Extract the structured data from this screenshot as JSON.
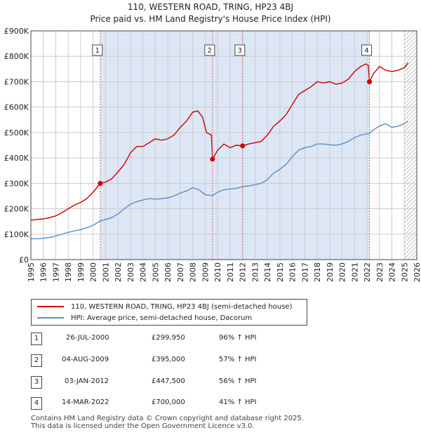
{
  "title_line1": "110, WESTERN ROAD, TRING, HP23 4BJ",
  "title_line2": "Price paid vs. HM Land Registry's House Price Index (HPI)",
  "colors": {
    "property": "#cc0000",
    "hpi": "#5b8ec9",
    "shade": "#dde6f5",
    "grid": "#cccccc",
    "marker_line": "#e06060"
  },
  "chart_data": {
    "type": "line",
    "xlim": [
      1995,
      2026
    ],
    "ylim": [
      0,
      900000
    ],
    "y_ticks": [
      {
        "value": 0,
        "label": "£0"
      },
      {
        "value": 100000,
        "label": "£100K"
      },
      {
        "value": 200000,
        "label": "£200K"
      },
      {
        "value": 300000,
        "label": "£300K"
      },
      {
        "value": 400000,
        "label": "£400K"
      },
      {
        "value": 500000,
        "label": "£500K"
      },
      {
        "value": 600000,
        "label": "£600K"
      },
      {
        "value": 700000,
        "label": "£700K"
      },
      {
        "value": 800000,
        "label": "£800K"
      },
      {
        "value": 900000,
        "label": "£900K"
      }
    ],
    "x_ticks": [
      "1995",
      "1996",
      "1997",
      "1998",
      "1999",
      "2000",
      "2001",
      "2002",
      "2003",
      "2004",
      "2005",
      "2006",
      "2007",
      "2008",
      "2009",
      "2010",
      "2011",
      "2012",
      "2013",
      "2014",
      "2015",
      "2016",
      "2017",
      "2018",
      "2019",
      "2020",
      "2021",
      "2022",
      "2023",
      "2024",
      "2025",
      "2026"
    ],
    "shaded_range": [
      2000.57,
      2022.2
    ],
    "hatched_from": 2025.0,
    "series": [
      {
        "name": "110, WESTERN ROAD, TRING, HP23 4BJ (semi-detached house)",
        "color": "#cc0000",
        "points": [
          [
            1995.0,
            155000
          ],
          [
            1995.5,
            158000
          ],
          [
            1996.0,
            160000
          ],
          [
            1996.5,
            165000
          ],
          [
            1997.0,
            172000
          ],
          [
            1997.5,
            185000
          ],
          [
            1998.0,
            200000
          ],
          [
            1998.5,
            215000
          ],
          [
            1999.0,
            225000
          ],
          [
            1999.5,
            240000
          ],
          [
            2000.0,
            265000
          ],
          [
            2000.57,
            299950
          ],
          [
            2001.0,
            305000
          ],
          [
            2001.5,
            318000
          ],
          [
            2002.0,
            345000
          ],
          [
            2002.5,
            375000
          ],
          [
            2003.0,
            420000
          ],
          [
            2003.5,
            445000
          ],
          [
            2004.0,
            445000
          ],
          [
            2004.5,
            460000
          ],
          [
            2005.0,
            475000
          ],
          [
            2005.5,
            470000
          ],
          [
            2006.0,
            475000
          ],
          [
            2006.5,
            490000
          ],
          [
            2007.0,
            520000
          ],
          [
            2007.5,
            545000
          ],
          [
            2008.0,
            580000
          ],
          [
            2008.4,
            585000
          ],
          [
            2008.8,
            560000
          ],
          [
            2009.1,
            500000
          ],
          [
            2009.5,
            490000
          ],
          [
            2009.59,
            395000
          ],
          [
            2010.0,
            430000
          ],
          [
            2010.5,
            455000
          ],
          [
            2011.0,
            440000
          ],
          [
            2011.5,
            450000
          ],
          [
            2012.01,
            447500
          ],
          [
            2012.5,
            455000
          ],
          [
            2013.0,
            460000
          ],
          [
            2013.5,
            465000
          ],
          [
            2014.0,
            490000
          ],
          [
            2014.5,
            525000
          ],
          [
            2015.0,
            545000
          ],
          [
            2015.5,
            570000
          ],
          [
            2016.0,
            610000
          ],
          [
            2016.5,
            650000
          ],
          [
            2017.0,
            665000
          ],
          [
            2017.5,
            680000
          ],
          [
            2018.0,
            700000
          ],
          [
            2018.5,
            695000
          ],
          [
            2019.0,
            700000
          ],
          [
            2019.5,
            690000
          ],
          [
            2020.0,
            695000
          ],
          [
            2020.5,
            710000
          ],
          [
            2021.0,
            740000
          ],
          [
            2021.5,
            760000
          ],
          [
            2021.9,
            770000
          ],
          [
            2022.1,
            765000
          ],
          [
            2022.2,
            700000
          ],
          [
            2022.5,
            730000
          ],
          [
            2023.0,
            760000
          ],
          [
            2023.5,
            745000
          ],
          [
            2024.0,
            740000
          ],
          [
            2024.5,
            745000
          ],
          [
            2025.0,
            755000
          ],
          [
            2025.3,
            775000
          ]
        ]
      },
      {
        "name": "HPI: Average price, semi-detached house, Dacorum",
        "color": "#5b8ec9",
        "points": [
          [
            1995.0,
            82000
          ],
          [
            1995.5,
            82000
          ],
          [
            1996.0,
            84000
          ],
          [
            1996.5,
            87000
          ],
          [
            1997.0,
            93000
          ],
          [
            1997.5,
            100000
          ],
          [
            1998.0,
            107000
          ],
          [
            1998.5,
            113000
          ],
          [
            1999.0,
            118000
          ],
          [
            1999.5,
            125000
          ],
          [
            2000.0,
            135000
          ],
          [
            2000.57,
            152000
          ],
          [
            2001.0,
            158000
          ],
          [
            2001.5,
            165000
          ],
          [
            2002.0,
            180000
          ],
          [
            2002.5,
            200000
          ],
          [
            2003.0,
            218000
          ],
          [
            2003.5,
            228000
          ],
          [
            2004.0,
            235000
          ],
          [
            2004.5,
            240000
          ],
          [
            2005.0,
            238000
          ],
          [
            2005.5,
            240000
          ],
          [
            2006.0,
            243000
          ],
          [
            2006.5,
            250000
          ],
          [
            2007.0,
            262000
          ],
          [
            2007.5,
            270000
          ],
          [
            2008.0,
            283000
          ],
          [
            2008.5,
            275000
          ],
          [
            2009.0,
            255000
          ],
          [
            2009.59,
            252000
          ],
          [
            2010.0,
            265000
          ],
          [
            2010.5,
            275000
          ],
          [
            2011.0,
            278000
          ],
          [
            2011.5,
            280000
          ],
          [
            2012.01,
            287000
          ],
          [
            2012.5,
            290000
          ],
          [
            2013.0,
            295000
          ],
          [
            2013.5,
            300000
          ],
          [
            2014.0,
            315000
          ],
          [
            2014.5,
            340000
          ],
          [
            2015.0,
            355000
          ],
          [
            2015.5,
            375000
          ],
          [
            2016.0,
            405000
          ],
          [
            2016.5,
            430000
          ],
          [
            2017.0,
            440000
          ],
          [
            2017.5,
            445000
          ],
          [
            2018.0,
            455000
          ],
          [
            2018.5,
            455000
          ],
          [
            2019.0,
            452000
          ],
          [
            2019.5,
            450000
          ],
          [
            2020.0,
            455000
          ],
          [
            2020.5,
            465000
          ],
          [
            2021.0,
            480000
          ],
          [
            2021.5,
            490000
          ],
          [
            2022.2,
            497000
          ],
          [
            2022.5,
            510000
          ],
          [
            2023.0,
            525000
          ],
          [
            2023.5,
            535000
          ],
          [
            2024.0,
            520000
          ],
          [
            2024.5,
            525000
          ],
          [
            2025.0,
            535000
          ],
          [
            2025.3,
            545000
          ]
        ]
      }
    ],
    "sales": [
      {
        "num": "1",
        "x": 2000.57,
        "y": 299950
      },
      {
        "num": "2",
        "x": 2009.59,
        "y": 395000
      },
      {
        "num": "3",
        "x": 2012.01,
        "y": 447500
      },
      {
        "num": "4",
        "x": 2022.2,
        "y": 700000
      }
    ]
  },
  "legend": [
    {
      "label": "110, WESTERN ROAD, TRING, HP23 4BJ (semi-detached house)",
      "color": "#cc0000"
    },
    {
      "label": "HPI: Average price, semi-detached house, Dacorum",
      "color": "#5b8ec9"
    }
  ],
  "transactions": [
    {
      "num": "1",
      "date": "26-JUL-2000",
      "price": "£299,950",
      "hpi": "96% ↑ HPI"
    },
    {
      "num": "2",
      "date": "04-AUG-2009",
      "price": "£395,000",
      "hpi": "57% ↑ HPI"
    },
    {
      "num": "3",
      "date": "03-JAN-2012",
      "price": "£447,500",
      "hpi": "56% ↑ HPI"
    },
    {
      "num": "4",
      "date": "14-MAR-2022",
      "price": "£700,000",
      "hpi": "41% ↑ HPI"
    }
  ],
  "footer_line1": "Contains HM Land Registry data © Crown copyright and database right 2025.",
  "footer_line2": "This data is licensed under the Open Government Licence v3.0."
}
